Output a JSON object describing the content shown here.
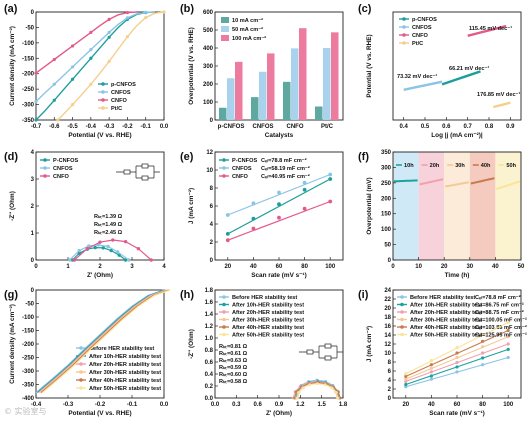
{
  "watermark": "© 实验室与",
  "colors": {
    "pcnfos": "#1e9e9a",
    "cnfos": "#8cc4e6",
    "cnfo": "#e25a8c",
    "ptc": "#f5cf8c",
    "h10": "#1ba39c",
    "h20": "#f3a0ad",
    "h30": "#f4c998",
    "h40": "#c87a4e",
    "h50": "#fae39a"
  },
  "chart_data": [
    {
      "panel": "a",
      "type": "line",
      "xlabel": "Potential (V vs. RHE)",
      "ylabel": "Current density (mA cm⁻²)",
      "xlim": [
        -0.7,
        0.0
      ],
      "ylim": [
        -350,
        0
      ],
      "xticks": [
        "-0.7",
        "-0.6",
        "-0.5",
        "-0.4",
        "-0.3",
        "-0.2",
        "-0.1",
        "0.0"
      ],
      "yticks": [
        "0",
        "-50",
        "-100",
        "-150",
        "-200",
        "-250",
        "-300",
        "-350"
      ],
      "legend_position": "bottom-right",
      "series": [
        {
          "name": "p-CNFOS",
          "color_key": "pcnfos",
          "x": [
            -0.7,
            -0.65,
            -0.6,
            -0.55,
            -0.5,
            -0.45,
            -0.4,
            -0.35,
            -0.3,
            -0.25,
            -0.2,
            -0.15,
            -0.1,
            -0.05
          ],
          "y": [
            -350,
            -320,
            -286,
            -252,
            -218,
            -184,
            -150,
            -116,
            -82,
            -50,
            -24,
            -8,
            -2,
            0
          ]
        },
        {
          "name": "CNFOS",
          "color_key": "cnfos",
          "x": [
            -0.7,
            -0.65,
            -0.6,
            -0.55,
            -0.5,
            -0.45,
            -0.4,
            -0.35,
            -0.3,
            -0.25,
            -0.2,
            -0.15,
            -0.1,
            -0.05
          ],
          "y": [
            -290,
            -262,
            -234,
            -206,
            -178,
            -150,
            -122,
            -94,
            -66,
            -40,
            -19,
            -6,
            -1,
            0
          ]
        },
        {
          "name": "CNFO",
          "color_key": "cnfo",
          "x": [
            -0.7,
            -0.65,
            -0.6,
            -0.55,
            -0.5,
            -0.45,
            -0.4,
            -0.35,
            -0.3,
            -0.25,
            -0.2,
            -0.15
          ],
          "y": [
            -198,
            -176,
            -154,
            -132,
            -110,
            -88,
            -66,
            -44,
            -24,
            -9,
            -2,
            0
          ]
        },
        {
          "name": "Pt/C",
          "color_key": "ptc",
          "x": [
            -0.58,
            -0.55,
            -0.5,
            -0.45,
            -0.4,
            -0.35,
            -0.3,
            -0.25,
            -0.2,
            -0.15,
            -0.1,
            -0.05,
            0.0
          ],
          "y": [
            -350,
            -332,
            -300,
            -268,
            -234,
            -198,
            -160,
            -120,
            -80,
            -45,
            -18,
            -4,
            0
          ]
        }
      ]
    },
    {
      "panel": "b",
      "type": "bar",
      "xlabel": "Catalysts",
      "ylabel": "Overpotential (V vs. RHE)",
      "ylim": [
        0,
        600
      ],
      "yticks": [
        "0",
        "100",
        "200",
        "300",
        "400",
        "500",
        "600"
      ],
      "categories": [
        "p-CNFOS",
        "CNFOS",
        "CNFO",
        "Pt/C"
      ],
      "legend_position": "top-left",
      "series": [
        {
          "name": "10 mA cm⁻²",
          "color": "#5fa8a0",
          "values": [
            68,
            127,
            212,
            75
          ]
        },
        {
          "name": "50 mA cm⁻²",
          "color": "#a9d3ec",
          "values": [
            232,
            268,
            398,
            400
          ]
        },
        {
          "name": "100 mA cm⁻²",
          "color": "#ec7b9e",
          "values": [
            323,
            370,
            510,
            487
          ]
        }
      ]
    },
    {
      "panel": "c",
      "type": "scatter",
      "xlabel": "Log |j (mA cm⁻²)|",
      "ylabel": "Potential (V vs. RHE)",
      "xlim": [
        0.35,
        0.95
      ],
      "xticks": [
        "0.4",
        "0.5",
        "0.6",
        "0.7",
        "0.8",
        "0.9"
      ],
      "legend_position": "top-left",
      "series": [
        {
          "name": "p-CNFOS",
          "color_key": "pcnfos",
          "x": [
            0.58,
            0.64,
            0.7,
            0.76
          ],
          "y": [
            0.33,
            0.37,
            0.41,
            0.45
          ]
        },
        {
          "name": "CNFOS",
          "color_key": "cnfos",
          "x": [
            0.4,
            0.46,
            0.52,
            0.58
          ],
          "y": [
            0.28,
            0.305,
            0.33,
            0.355
          ]
        },
        {
          "name": "CNFO",
          "color_key": "cnfo",
          "x": [
            0.7,
            0.76,
            0.82,
            0.88
          ],
          "y": [
            0.78,
            0.81,
            0.84,
            0.87
          ]
        },
        {
          "name": "Pt/C",
          "color_key": "ptc",
          "x": [
            0.82,
            0.86,
            0.9
          ],
          "y": [
            0.12,
            0.14,
            0.16
          ]
        }
      ],
      "annotations": [
        {
          "text": "73.32 mV dec⁻¹",
          "color_key": "cnfos"
        },
        {
          "text": "66.21 mV dec⁻¹",
          "color_key": "pcnfos"
        },
        {
          "text": "115.45 mV dec⁻¹",
          "color_key": "cnfo"
        },
        {
          "text": "176.85 mV dec⁻¹",
          "color_key": "ptc"
        }
      ]
    },
    {
      "panel": "d",
      "type": "scatter",
      "xlabel": "Z' (Ohm)",
      "ylabel": "-Z'' (Ohm)",
      "xlim": [
        0,
        4
      ],
      "ylim": [
        0,
        4
      ],
      "xticks": [
        "0",
        "1",
        "2",
        "3",
        "4"
      ],
      "yticks": [
        "0",
        "1",
        "2",
        "3",
        "4"
      ],
      "legend_position": "top-left",
      "series": [
        {
          "name": "P-CNFOS",
          "color_key": "pcnfos",
          "x": [
            1.14,
            1.35,
            1.6,
            1.85,
            2.1,
            2.35,
            2.6,
            2.8
          ],
          "y": [
            0,
            0.25,
            0.4,
            0.46,
            0.45,
            0.35,
            0.18,
            0
          ]
        },
        {
          "name": "CNFOS",
          "color_key": "cnfos",
          "x": [
            1.05,
            1.35,
            1.65,
            1.95,
            2.25,
            2.55,
            2.9
          ],
          "y": [
            0,
            0.35,
            0.52,
            0.56,
            0.5,
            0.3,
            0
          ]
        },
        {
          "name": "CNFO",
          "color_key": "cnfo",
          "x": [
            1.2,
            1.6,
            2.0,
            2.4,
            2.8,
            3.2,
            3.6
          ],
          "y": [
            0,
            0.42,
            0.66,
            0.74,
            0.68,
            0.42,
            0
          ]
        }
      ],
      "annotations": [
        {
          "text": "Rₕₜ=1.39 Ω",
          "color_key": "pcnfos"
        },
        {
          "text": "Rₕₜ=1.49 Ω",
          "color_key": "cnfos"
        },
        {
          "text": "Rₕₜ=2.45 Ω",
          "color_key": "cnfo"
        }
      ]
    },
    {
      "panel": "e",
      "type": "scatter",
      "xlabel": "Scan rate (mV s⁻¹)",
      "ylabel": "J (mA cm⁻²)",
      "xlim": [
        10,
        110
      ],
      "ylim": [
        0,
        12
      ],
      "xticks": [
        "20",
        "40",
        "60",
        "80",
        "100"
      ],
      "yticks": [
        "0",
        "2",
        "4",
        "6",
        "8",
        "10",
        "12"
      ],
      "legend_position": "top-left",
      "series": [
        {
          "name": "P-CNFOS",
          "color_key": "pcnfos",
          "x": [
            20,
            40,
            60,
            80,
            100
          ],
          "y": [
            2.9,
            4.6,
            6.2,
            7.8,
            9.0
          ]
        },
        {
          "name": "CNFOS",
          "color_key": "cnfos",
          "x": [
            20,
            40,
            60,
            80,
            100
          ],
          "y": [
            5.0,
            6.3,
            7.5,
            8.6,
            9.5
          ]
        },
        {
          "name": "CNFO",
          "color_key": "cnfo",
          "x": [
            20,
            40,
            60,
            80,
            100
          ],
          "y": [
            2.2,
            3.5,
            4.7,
            5.7,
            6.5
          ]
        }
      ],
      "annotations": [
        {
          "text": "Cₑₗ=78.8 mF cm⁻²",
          "color_key": "pcnfos"
        },
        {
          "text": "Cₑₗ=58.19 mF cm⁻²",
          "color_key": "cnfos"
        },
        {
          "text": "Cₑₗ=40.95 mF cm⁻²",
          "color_key": "cnfo"
        }
      ]
    },
    {
      "panel": "f",
      "type": "line",
      "xlabel": "Time (h)",
      "ylabel": "Overpotential (mV)",
      "xlim": [
        0,
        50
      ],
      "ylim": [
        0,
        350
      ],
      "xticks": [
        "0",
        "10",
        "20",
        "30",
        "40",
        "50"
      ],
      "yticks": [
        "0",
        "50",
        "100",
        "150",
        "200",
        "250",
        "300",
        "350"
      ],
      "regions": [
        {
          "label": "10h",
          "x0": 0,
          "x1": 10,
          "bg": "#cfe9f6",
          "line_key": "h10"
        },
        {
          "label": "20h",
          "x0": 10,
          "x1": 20,
          "bg": "#f7d2da",
          "line_key": "h20"
        },
        {
          "label": "30h",
          "x0": 20,
          "x1": 30,
          "bg": "#fbebd8",
          "line_key": "h30"
        },
        {
          "label": "40h",
          "x0": 30,
          "x1": 40,
          "bg": "#f6cbbf",
          "line_key": "h40"
        },
        {
          "label": "50h",
          "x0": 40,
          "x1": 50,
          "bg": "#fbf3d0",
          "line_key": "h50"
        }
      ],
      "series_levels": [
        [
          255,
          258
        ],
        [
          245,
          262
        ],
        [
          238,
          252
        ],
        [
          248,
          265
        ],
        [
          230,
          255
        ]
      ]
    },
    {
      "panel": "g",
      "type": "line",
      "xlabel": "Potential (V vs. RHE)",
      "ylabel": "Current density (mA cm⁻²)",
      "xlim": [
        -0.4,
        0.0
      ],
      "ylim": [
        -400,
        0
      ],
      "xticks": [
        "-0.4",
        "-0.3",
        "-0.2",
        "-0.1",
        "0.0"
      ],
      "yticks": [
        "0",
        "-50",
        "-100",
        "-150",
        "-200",
        "-250",
        "-300",
        "-350",
        "-400"
      ],
      "legend_position": "bottom-right",
      "series_names": [
        "Before HER stability test",
        "After 10h-HER stability test",
        "After 20h-HER stability test",
        "After 30h-HER stability test",
        "After 40h-HER stability test",
        "After 50h-HER stability test"
      ],
      "color_keys": [
        "cnfos",
        "h10",
        "h20",
        "h30",
        "h40",
        "h50"
      ],
      "x": [
        -0.4,
        -0.35,
        -0.3,
        -0.25,
        -0.2,
        -0.15,
        -0.1,
        -0.05,
        0.0
      ],
      "y": [
        -380,
        -330,
        -278,
        -220,
        -165,
        -110,
        -60,
        -20,
        0
      ]
    },
    {
      "panel": "h",
      "type": "scatter",
      "xlabel": "Z' (Ohm)",
      "ylabel": "-Z'' (Ohm)",
      "xlim": [
        0,
        1.8
      ],
      "ylim": [
        0,
        1.8
      ],
      "xticks": [
        "0.0",
        "0.3",
        "0.6",
        "0.9",
        "1.2",
        "1.5",
        "1.8"
      ],
      "yticks": [
        "0.0",
        "0.2",
        "0.4",
        "0.6",
        "0.8",
        "1.0",
        "1.2",
        "1.4",
        "1.6",
        "1.8"
      ],
      "legend_position": "top-left",
      "series_names": [
        "Before HER stability test",
        "After 10h-HER stability test",
        "After 20h-HER stability test",
        "After 30h-HER stability test",
        "After 40h-HER stability test",
        "After 50h-HER stability test"
      ],
      "color_keys": [
        "cnfos",
        "h10",
        "h20",
        "h30",
        "h40",
        "h50"
      ],
      "arcs": [
        [
          1.12,
          1.75,
          0.3
        ],
        [
          1.14,
          1.74,
          0.28
        ],
        [
          1.1,
          1.76,
          0.27
        ],
        [
          1.16,
          1.72,
          0.25
        ],
        [
          1.12,
          1.76,
          0.26
        ],
        [
          1.15,
          1.73,
          0.24
        ]
      ],
      "annotations": [
        "Rₕₜ=0.81 Ω",
        "Rₕₜ=0.61 Ω",
        "Rₕₜ=0.63 Ω",
        "Rₕₜ=0.59 Ω",
        "Rₕₜ=0.60 Ω",
        "Rₕₜ=0.58 Ω"
      ]
    },
    {
      "panel": "i",
      "type": "scatter",
      "xlabel": "Scan rate (mV s⁻¹)",
      "ylabel": "J (mA cm⁻²)",
      "xlim": [
        10,
        110
      ],
      "ylim": [
        0,
        24
      ],
      "xticks": [
        "20",
        "40",
        "60",
        "80",
        "100"
      ],
      "yticks": [
        "0",
        "2",
        "4",
        "6",
        "8",
        "10",
        "12",
        "14",
        "16",
        "18",
        "20",
        "22",
        "24"
      ],
      "legend_position": "top-left",
      "series_names": [
        "Before HER stability test",
        "After 10h-HER stability test",
        "After 20h-HER stability test",
        "After 30h-HER stability test",
        "After 40h-HER stability test",
        "After 50h-HER stability test"
      ],
      "color_keys": [
        "cnfos",
        "h10",
        "h20",
        "h30",
        "h40",
        "h50"
      ],
      "x": [
        20,
        40,
        60,
        80,
        100
      ],
      "ys": [
        [
          2.5,
          4.2,
          5.8,
          7.4,
          9.0
        ],
        [
          3.0,
          4.9,
          6.9,
          8.9,
          10.8
        ],
        [
          3.7,
          5.8,
          7.9,
          10.0,
          12.0
        ],
        [
          4.2,
          6.6,
          9.0,
          11.4,
          13.6
        ],
        [
          4.8,
          7.4,
          10.0,
          12.6,
          15.0
        ],
        [
          5.4,
          8.3,
          11.2,
          14.1,
          16.8
        ]
      ],
      "annotations": [
        "Cₑₗ=78.8 mF cm⁻²",
        "Cₑₗ=86.75 mF cm⁻²",
        "Cₑₗ=88.75 mF cm⁻²",
        "Cₑₗ=100.05 mF cm⁻²",
        "Cₑₗ=103.85 mF cm⁻²",
        "Cₑₗ=125.95 mF cm⁻²"
      ]
    }
  ]
}
